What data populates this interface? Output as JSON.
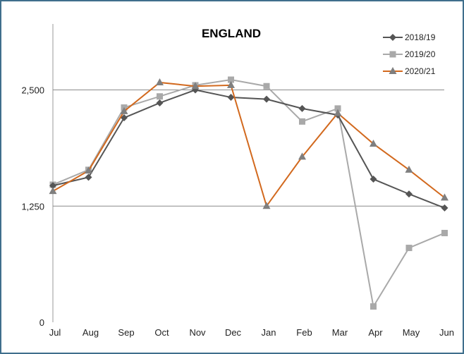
{
  "chart_data": {
    "type": "line",
    "title": "ENGLAND",
    "xlabel": "",
    "ylabel": "",
    "categories": [
      "Jul",
      "Aug",
      "Sep",
      "Oct",
      "Nov",
      "Dec",
      "Jan",
      "Feb",
      "Mar",
      "Apr",
      "May",
      "Jun"
    ],
    "ylim": [
      0,
      3000
    ],
    "yticks": [
      {
        "value": 0,
        "label": "0"
      },
      {
        "value": 1250,
        "label": "1,250"
      },
      {
        "value": 2500,
        "label": "2,500"
      }
    ],
    "grid": "horizontal lines at labelled ticks",
    "legend_position": "top-right",
    "series": [
      {
        "name": "2018/19",
        "color": "#555555",
        "marker": "diamond",
        "values": [
          1470,
          1560,
          2200,
          2360,
          2500,
          2420,
          2400,
          2300,
          2230,
          1540,
          1380,
          1230
        ]
      },
      {
        "name": "2019/20",
        "color": "#a9a9a9",
        "marker": "square",
        "values": [
          1480,
          1640,
          2310,
          2430,
          2550,
          2610,
          2540,
          2160,
          2300,
          170,
          800,
          960
        ]
      },
      {
        "name": "2020/21",
        "color": "#d2691e",
        "marker": "triangle",
        "values": [
          1410,
          1630,
          2270,
          2580,
          2540,
          2550,
          1250,
          1780,
          2250,
          1920,
          1640,
          1340
        ]
      }
    ]
  }
}
